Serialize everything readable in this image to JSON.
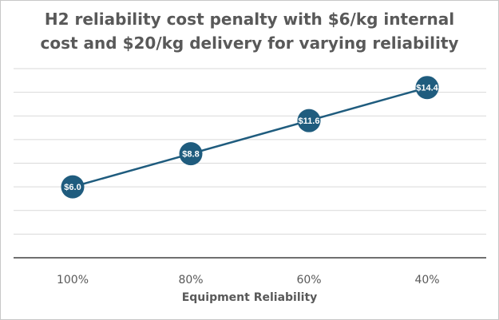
{
  "chart_data": {
    "type": "line",
    "title": "H2 reliability cost penalty with $6/kg internal cost and $20/kg delivery for varying reliability",
    "title_lines": [
      "H2 reliability cost penalty with $6/kg internal",
      "cost and $20/kg delivery for varying reliability"
    ],
    "categories": [
      "100%",
      "80%",
      "60%",
      "40%"
    ],
    "series": [
      {
        "values": [
          6.0,
          8.8,
          11.6,
          14.4
        ],
        "data_labels": [
          "$6.0",
          "$8.8",
          "$11.6",
          "$14.4"
        ],
        "color": "#1f5c7e"
      }
    ],
    "xlabel": "Equipment Reliability",
    "ylabel": "",
    "ylim": [
      0,
      16
    ],
    "y_gridlines": true,
    "y_tick_labels_visible": false,
    "legend": "none",
    "colors": {
      "line": "#1f5c7e",
      "marker": "#1f5c7e",
      "gridline": "#d9d9d9",
      "axis": "#404040",
      "text": "#595959",
      "label_text": "#ffffff"
    }
  }
}
